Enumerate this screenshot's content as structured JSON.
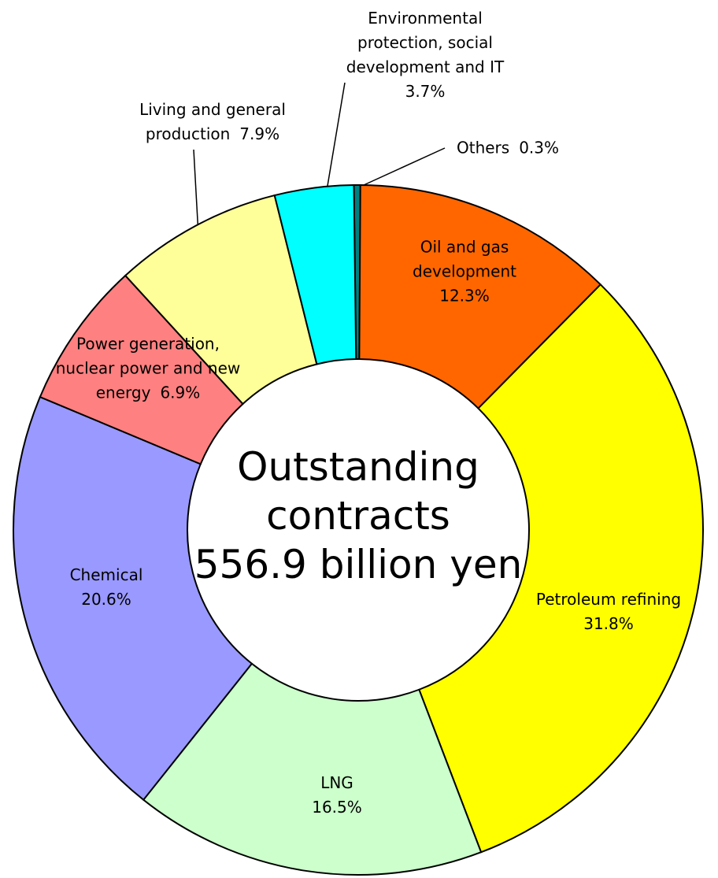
{
  "chart_data": {
    "type": "donut",
    "center_text": [
      "Outstanding",
      "contracts",
      "556.9 billion yen"
    ],
    "categories": [
      "Others",
      "Oil and gas development",
      "Petroleum refining",
      "LNG",
      "Chemical",
      "Power generation, nuclear power and new energy",
      "Living and general production",
      "Environmental protection, social development and IT"
    ],
    "values": [
      0.3,
      12.3,
      31.8,
      16.5,
      20.6,
      6.9,
      7.9,
      3.7
    ],
    "value_labels": [
      "0.3%",
      "12.3%",
      "31.8%",
      "16.5%",
      "20.6%",
      "6.9%",
      "7.9%",
      "3.7%"
    ],
    "colors": [
      "#008080",
      "#ff6600",
      "#ffff00",
      "#ccffcc",
      "#9999ff",
      "#ff8080",
      "#ffff99",
      "#00ffff"
    ]
  }
}
